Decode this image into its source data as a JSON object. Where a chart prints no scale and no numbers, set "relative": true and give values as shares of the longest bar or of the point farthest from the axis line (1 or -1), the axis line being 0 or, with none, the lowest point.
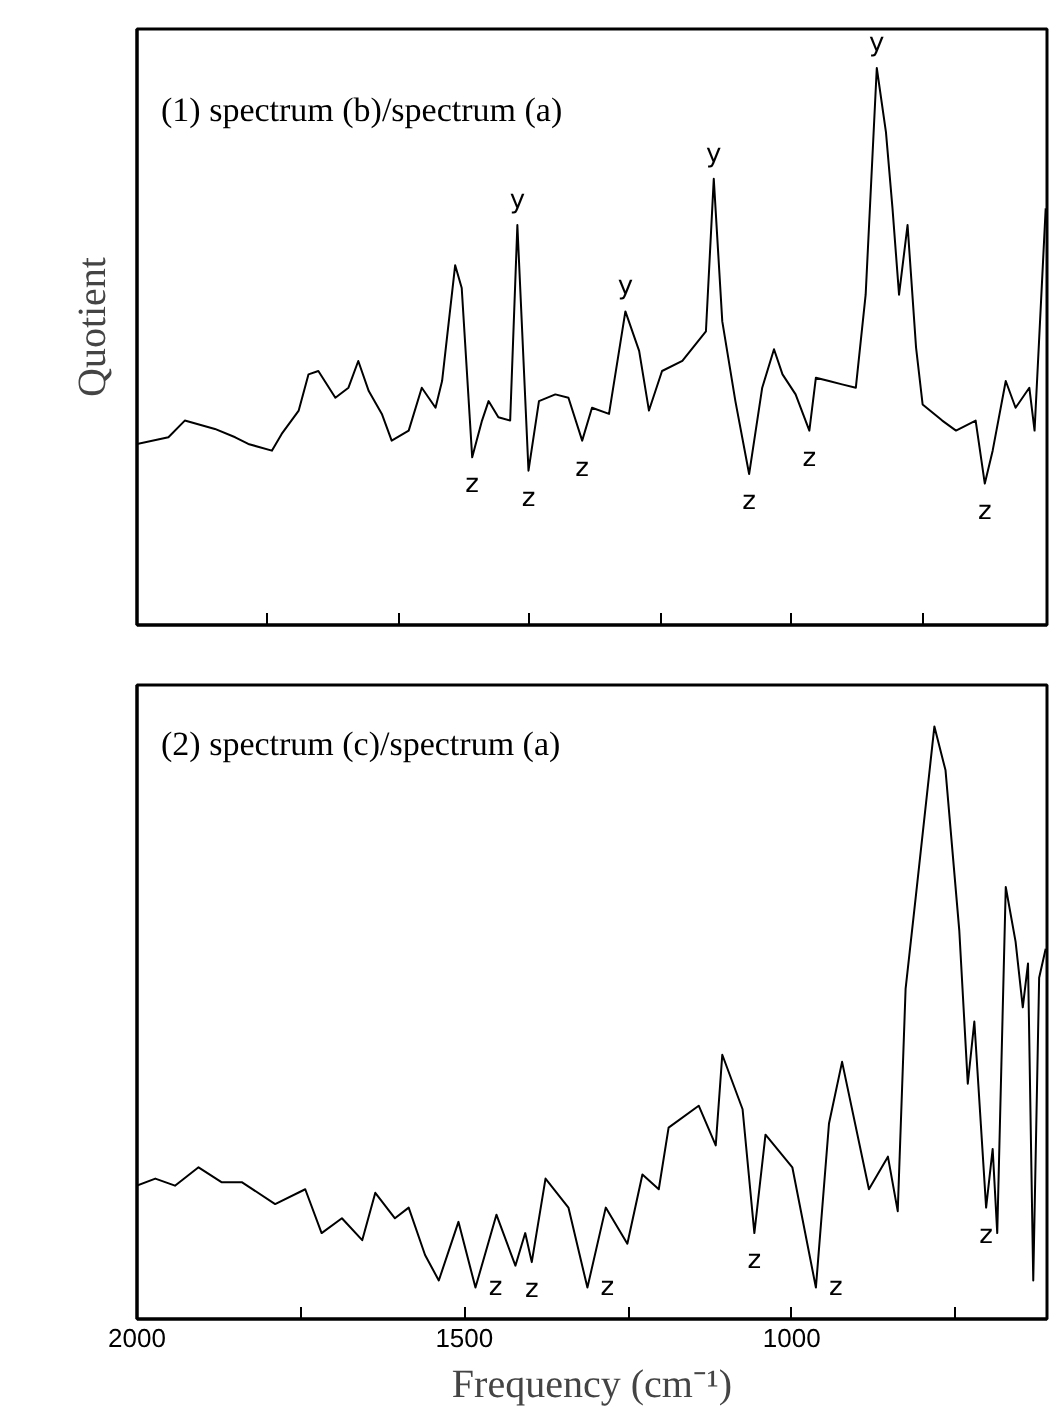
{
  "chart_data": [
    {
      "type": "line",
      "title": "(1) spectrum (b)/spectrum (a)",
      "ylabel": "Quotient",
      "relative": true,
      "tick_labels": false,
      "xlim": [
        2000,
        610
      ],
      "xticks": [
        {
          "value": 1800,
          "label": null
        },
        {
          "value": 1600,
          "label": null
        },
        {
          "value": 1400,
          "label": null
        },
        {
          "value": 1200,
          "label": null
        },
        {
          "value": 1000,
          "label": null
        },
        {
          "value": 800,
          "label": null
        }
      ],
      "series": [
        {
          "color": "#000000",
          "x": [
            2000,
            1952,
            1927,
            1881,
            1850,
            1830,
            1794,
            1779,
            1753,
            1738,
            1723,
            1697,
            1677,
            1662,
            1646,
            1626,
            1611,
            1585,
            1565,
            1544,
            1534,
            1514,
            1504,
            1488,
            1473,
            1463,
            1448,
            1430,
            1419,
            1402,
            1386,
            1361,
            1341,
            1320,
            1305,
            1279,
            1254,
            1233,
            1218,
            1198,
            1167,
            1131,
            1119,
            1106,
            1086,
            1065,
            1045,
            1027,
            1014,
            994,
            973,
            963,
            943,
            923,
            902,
            887,
            870,
            856,
            846,
            836,
            823,
            810,
            800,
            770,
            749,
            719,
            705,
            693,
            673,
            658,
            637,
            629,
            612
          ],
          "values": [
            0.325,
            0.337,
            0.367,
            0.352,
            0.337,
            0.325,
            0.313,
            0.343,
            0.385,
            0.45,
            0.456,
            0.408,
            0.426,
            0.474,
            0.42,
            0.379,
            0.331,
            0.349,
            0.426,
            0.39,
            0.438,
            0.646,
            0.605,
            0.301,
            0.367,
            0.402,
            0.373,
            0.367,
            0.718,
            0.277,
            0.402,
            0.414,
            0.408,
            0.331,
            0.39,
            0.379,
            0.563,
            0.492,
            0.385,
            0.456,
            0.474,
            0.527,
            0.801,
            0.545,
            0.402,
            0.271,
            0.426,
            0.495,
            0.45,
            0.414,
            0.349,
            0.444,
            0.438,
            0.432,
            0.426,
            0.593,
            1.0,
            0.885,
            0.748,
            0.593,
            0.718,
            0.498,
            0.396,
            0.367,
            0.349,
            0.367,
            0.254,
            0.313,
            0.438,
            0.39,
            0.426,
            0.349,
            0.748
          ]
        }
      ],
      "annotations": [
        {
          "text": "y",
          "x": 1419,
          "y": 0.718
        },
        {
          "text": "y",
          "x": 1254,
          "y": 0.563
        },
        {
          "text": "y",
          "x": 1119,
          "y": 0.801
        },
        {
          "text": "y",
          "x": 870,
          "y": 1.0
        },
        {
          "text": "z",
          "x": 1488,
          "y": 0.301
        },
        {
          "text": "z",
          "x": 1402,
          "y": 0.277
        },
        {
          "text": "z",
          "x": 1320,
          "y": 0.331
        },
        {
          "text": "z",
          "x": 1065,
          "y": 0.271
        },
        {
          "text": "z",
          "x": 973,
          "y": 0.349
        },
        {
          "text": "z",
          "x": 705,
          "y": 0.254
        }
      ]
    },
    {
      "type": "line",
      "title": "(2) spectrum (c)/spectrum (a)",
      "xlabel": "Frequency (cm⁻¹)",
      "relative": true,
      "tick_labels": "x",
      "xlim": [
        2000,
        610
      ],
      "xticks": [
        2000,
        {
          "value": 1750,
          "label": null
        },
        1500,
        {
          "value": 1250,
          "label": null
        },
        1000,
        {
          "value": 750,
          "label": null
        }
      ],
      "series": [
        {
          "color": "#000000",
          "x": [
            2000,
            1972,
            1942,
            1906,
            1871,
            1840,
            1789,
            1743,
            1718,
            1687,
            1656,
            1636,
            1606,
            1585,
            1560,
            1539,
            1509,
            1483,
            1451,
            1422,
            1407,
            1397,
            1376,
            1341,
            1312,
            1284,
            1251,
            1228,
            1203,
            1188,
            1142,
            1116,
            1106,
            1075,
            1057,
            1040,
            999,
            963,
            943,
            923,
            882,
            853,
            838,
            826,
            810,
            782,
            765,
            744,
            731,
            721,
            703,
            693,
            686,
            673,
            658,
            647,
            639,
            631,
            622,
            612
          ],
          "values": [
            0.225,
            0.237,
            0.225,
            0.256,
            0.231,
            0.231,
            0.194,
            0.219,
            0.145,
            0.17,
            0.133,
            0.213,
            0.17,
            0.188,
            0.108,
            0.065,
            0.164,
            0.053,
            0.176,
            0.09,
            0.145,
            0.096,
            0.237,
            0.188,
            0.053,
            0.188,
            0.127,
            0.244,
            0.219,
            0.323,
            0.36,
            0.293,
            0.446,
            0.354,
            0.145,
            0.311,
            0.256,
            0.053,
            0.33,
            0.434,
            0.219,
            0.274,
            0.182,
            0.557,
            0.717,
            1.0,
            0.926,
            0.656,
            0.397,
            0.502,
            0.188,
            0.287,
            0.145,
            0.729,
            0.637,
            0.526,
            0.6,
            0.065,
            0.576,
            0.625
          ]
        }
      ],
      "annotations": [
        {
          "text": "z",
          "x": 1483,
          "y": 0.053
        },
        {
          "text": "z",
          "x": 1397,
          "y": 0.096
        },
        {
          "text": "z",
          "x": 1312,
          "y": 0.053
        },
        {
          "text": "z",
          "x": 1057,
          "y": 0.145
        },
        {
          "text": "z",
          "x": 963,
          "y": 0.053
        },
        {
          "text": "z",
          "x": 703,
          "y": 0.188
        }
      ]
    }
  ]
}
